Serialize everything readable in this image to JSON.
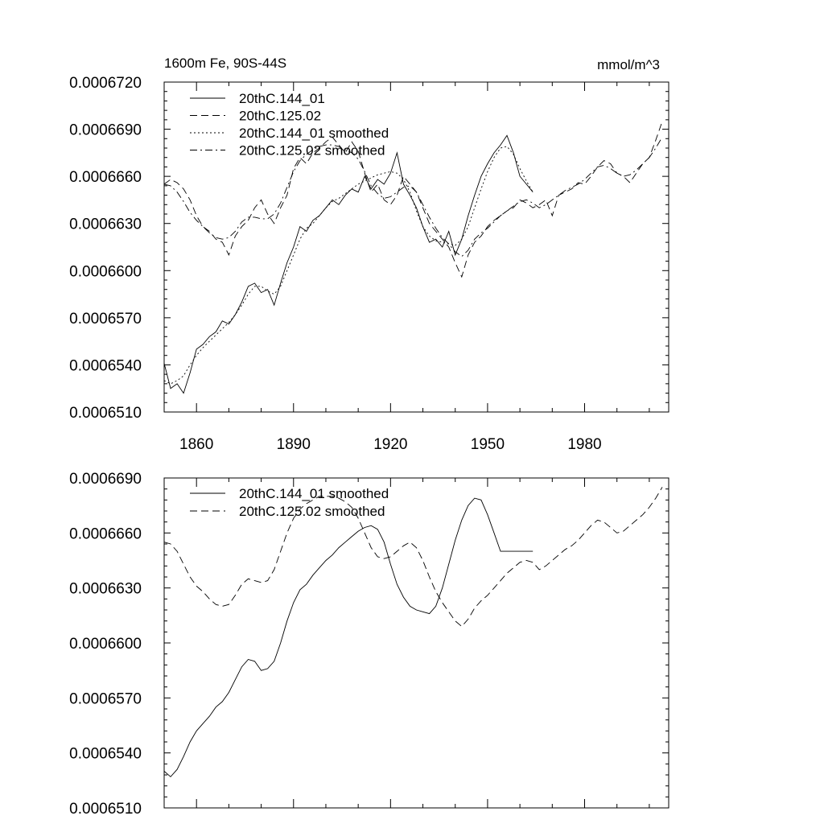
{
  "chart_data": [
    {
      "type": "line",
      "title_left": "1600m Fe, 90S-44S",
      "title_right": "mmol/m^3",
      "xlim": [
        1850,
        2006
      ],
      "ylim": [
        0.000651,
        0.000672
      ],
      "x_ticks": [
        1860,
        1890,
        1920,
        1950,
        1980
      ],
      "x_tick_labels": [
        "1860",
        "1890",
        "1920",
        "1950",
        "1980"
      ],
      "y_ticks": [
        0.000651,
        0.000654,
        0.000657,
        0.00066,
        0.000663,
        0.000666,
        0.000669,
        0.000672
      ],
      "y_tick_labels": [
        "0.0006510",
        "0.0006540",
        "0.0006570",
        "0.0006600",
        "0.0006630",
        "0.0006660",
        "0.0006690",
        "0.0006720"
      ],
      "series": [
        {
          "name": "20thC.144_01",
          "dash": "solid",
          "x": [
            1850,
            1852,
            1854,
            1856,
            1858,
            1860,
            1862,
            1864,
            1866,
            1868,
            1870,
            1872,
            1874,
            1876,
            1878,
            1880,
            1882,
            1884,
            1886,
            1888,
            1890,
            1892,
            1894,
            1896,
            1898,
            1900,
            1902,
            1904,
            1906,
            1908,
            1910,
            1912,
            1914,
            1916,
            1918,
            1920,
            1922,
            1924,
            1926,
            1928,
            1930,
            1932,
            1934,
            1936,
            1938,
            1940,
            1942,
            1944,
            1946,
            1948,
            1950,
            1952,
            1954,
            1956,
            1958,
            1960,
            1962,
            1964
          ],
          "values": [
            0.0006541,
            0.0006525,
            0.0006528,
            0.0006522,
            0.0006535,
            0.000655,
            0.0006553,
            0.0006558,
            0.0006561,
            0.0006568,
            0.0006566,
            0.0006572,
            0.000658,
            0.000659,
            0.0006592,
            0.0006586,
            0.0006588,
            0.0006578,
            0.0006592,
            0.0006605,
            0.0006615,
            0.0006628,
            0.0006625,
            0.0006632,
            0.0006635,
            0.000664,
            0.0006645,
            0.0006642,
            0.0006648,
            0.0006652,
            0.000665,
            0.000666,
            0.0006652,
            0.0006658,
            0.0006655,
            0.0006662,
            0.0006675,
            0.0006655,
            0.0006648,
            0.000664,
            0.0006628,
            0.0006618,
            0.000662,
            0.0006615,
            0.0006625,
            0.000661,
            0.000662,
            0.0006635,
            0.0006648,
            0.000666,
            0.0006668,
            0.0006675,
            0.000668,
            0.0006686,
            0.0006675,
            0.000666,
            0.0006655,
            0.000665
          ]
        },
        {
          "name": "20thC.125.02",
          "dash": "long-dash",
          "x": [
            1850,
            1852,
            1854,
            1856,
            1858,
            1860,
            1862,
            1864,
            1866,
            1868,
            1870,
            1872,
            1874,
            1876,
            1878,
            1880,
            1882,
            1884,
            1886,
            1888,
            1890,
            1892,
            1894,
            1896,
            1898,
            1900,
            1902,
            1904,
            1906,
            1908,
            1910,
            1912,
            1914,
            1916,
            1918,
            1920,
            1922,
            1924,
            1926,
            1928,
            1930,
            1932,
            1934,
            1936,
            1938,
            1940,
            1942,
            1944,
            1946,
            1948,
            1950,
            1952,
            1954,
            1956,
            1958,
            1960,
            1962,
            1964,
            1966,
            1968,
            1970,
            1972,
            1974,
            1976,
            1978,
            1980,
            1982,
            1984,
            1986,
            1988,
            1990,
            1992,
            1994,
            1996,
            1998,
            2000,
            2002,
            2004
          ],
          "values": [
            0.0006655,
            0.0006658,
            0.0006656,
            0.0006652,
            0.0006645,
            0.0006635,
            0.0006628,
            0.0006625,
            0.000662,
            0.0006618,
            0.000661,
            0.0006622,
            0.0006628,
            0.0006632,
            0.000664,
            0.0006645,
            0.0006636,
            0.000663,
            0.000664,
            0.0006648,
            0.0006665,
            0.0006672,
            0.0006668,
            0.0006675,
            0.0006678,
            0.0006682,
            0.0006685,
            0.000668,
            0.0006675,
            0.0006682,
            0.0006676,
            0.0006662,
            0.000665,
            0.0006655,
            0.0006645,
            0.0006642,
            0.0006648,
            0.000666,
            0.0006655,
            0.000665,
            0.000664,
            0.000663,
            0.0006625,
            0.000662,
            0.0006615,
            0.0006605,
            0.0006596,
            0.000661,
            0.0006618,
            0.0006622,
            0.0006628,
            0.0006632,
            0.0006635,
            0.0006638,
            0.000664,
            0.0006645,
            0.0006643,
            0.000664,
            0.0006642,
            0.0006645,
            0.0006635,
            0.0006648,
            0.000665,
            0.0006652,
            0.0006656,
            0.0006655,
            0.000666,
            0.0006666,
            0.000667,
            0.0006668,
            0.0006662,
            0.000666,
            0.0006656,
            0.0006662,
            0.0006668,
            0.0006672,
            0.0006683,
            0.0006695
          ]
        },
        {
          "name": "20thC.144_01 smoothed",
          "dash": "dotted",
          "x": [
            1850,
            1852,
            1854,
            1856,
            1858,
            1860,
            1862,
            1864,
            1866,
            1868,
            1870,
            1872,
            1874,
            1876,
            1878,
            1880,
            1882,
            1884,
            1886,
            1888,
            1890,
            1892,
            1894,
            1896,
            1898,
            1900,
            1902,
            1904,
            1906,
            1908,
            1910,
            1912,
            1914,
            1916,
            1918,
            1920,
            1922,
            1924,
            1926,
            1928,
            1930,
            1932,
            1934,
            1936,
            1938,
            1940,
            1942,
            1944,
            1946,
            1948,
            1950,
            1952,
            1954,
            1956,
            1958,
            1960,
            1962,
            1964
          ],
          "values": [
            0.000653,
            0.0006528,
            0.000653,
            0.0006533,
            0.000654,
            0.0006546,
            0.0006551,
            0.0006555,
            0.0006559,
            0.0006563,
            0.0006567,
            0.0006572,
            0.0006578,
            0.0006585,
            0.000659,
            0.000659,
            0.0006587,
            0.0006585,
            0.000659,
            0.00066,
            0.000661,
            0.000662,
            0.0006627,
            0.000663,
            0.0006635,
            0.000664,
            0.0006644,
            0.0006646,
            0.0006649,
            0.0006652,
            0.0006655,
            0.0006657,
            0.0006659,
            0.0006661,
            0.0006662,
            0.0006663,
            0.0006662,
            0.0006658,
            0.000665,
            0.0006638,
            0.0006628,
            0.0006622,
            0.0006619,
            0.0006618,
            0.0006617,
            0.0006616,
            0.000662,
            0.0006628,
            0.000664,
            0.0006652,
            0.0006663,
            0.0006672,
            0.0006678,
            0.0006679,
            0.0006674,
            0.0006665,
            0.0006657,
            0.000665
          ]
        },
        {
          "name": "20thC.125.02 smoothed",
          "dash": "dash-dot",
          "x": [
            1850,
            1852,
            1854,
            1856,
            1858,
            1860,
            1862,
            1864,
            1866,
            1868,
            1870,
            1872,
            1874,
            1876,
            1878,
            1880,
            1882,
            1884,
            1886,
            1888,
            1890,
            1892,
            1894,
            1896,
            1898,
            1900,
            1902,
            1904,
            1906,
            1908,
            1910,
            1912,
            1914,
            1916,
            1918,
            1920,
            1922,
            1924,
            1926,
            1928,
            1930,
            1932,
            1934,
            1936,
            1938,
            1940,
            1942,
            1944,
            1946,
            1948,
            1950,
            1952,
            1954,
            1956,
            1958,
            1960,
            1962,
            1964,
            1966,
            1968,
            1970,
            1972,
            1974,
            1976,
            1978,
            1980,
            1982,
            1984,
            1986,
            1988,
            1990,
            1992,
            1994,
            1996,
            1998,
            2000,
            2002,
            2004
          ],
          "values": [
            0.0006655,
            0.0006654,
            0.000665,
            0.0006644,
            0.0006637,
            0.0006632,
            0.0006628,
            0.0006624,
            0.0006621,
            0.000662,
            0.0006621,
            0.0006625,
            0.0006631,
            0.0006634,
            0.0006634,
            0.0006633,
            0.0006633,
            0.0006636,
            0.0006643,
            0.0006653,
            0.0006663,
            0.000667,
            0.0006674,
            0.0006677,
            0.0006679,
            0.000668,
            0.000668,
            0.0006679,
            0.0006677,
            0.0006675,
            0.0006671,
            0.0006663,
            0.0006654,
            0.0006649,
            0.0006646,
            0.0006647,
            0.000665,
            0.0006653,
            0.0006654,
            0.000665,
            0.0006642,
            0.0006634,
            0.0006627,
            0.0006621,
            0.0006617,
            0.0006612,
            0.0006609,
            0.0006613,
            0.000662,
            0.0006624,
            0.0006627,
            0.0006631,
            0.0006635,
            0.0006638,
            0.0006641,
            0.0006644,
            0.0006645,
            0.0006643,
            0.000664,
            0.0006642,
            0.0006645,
            0.0006648,
            0.0006651,
            0.0006653,
            0.0006655,
            0.0006658,
            0.0006662,
            0.0006666,
            0.0006667,
            0.0006665,
            0.0006662,
            0.000666,
            0.0006661,
            0.0006664,
            0.0006668,
            0.0006672,
            0.0006678,
            0.0006685
          ]
        }
      ]
    },
    {
      "type": "line",
      "xlim": [
        1850,
        2006
      ],
      "ylim": [
        0.000651,
        0.000669
      ],
      "x_ticks": [
        1860,
        1890,
        1920,
        1950,
        1980
      ],
      "x_tick_labels": [],
      "y_ticks": [
        0.000651,
        0.000654,
        0.000657,
        0.00066,
        0.000663,
        0.000666,
        0.000669
      ],
      "y_tick_labels": [
        "0.0006510",
        "0.0006540",
        "0.0006570",
        "0.0006600",
        "0.0006630",
        "0.0006660",
        "0.0006690"
      ],
      "series": [
        {
          "name": "20thC.144_01 smoothed",
          "dash": "solid",
          "x": [
            1850,
            1852,
            1854,
            1856,
            1858,
            1860,
            1862,
            1864,
            1866,
            1868,
            1870,
            1872,
            1874,
            1876,
            1878,
            1880,
            1882,
            1884,
            1886,
            1888,
            1890,
            1892,
            1894,
            1896,
            1898,
            1900,
            1902,
            1904,
            1906,
            1908,
            1910,
            1912,
            1914,
            1916,
            1918,
            1920,
            1922,
            1924,
            1926,
            1928,
            1930,
            1932,
            1934,
            1936,
            1938,
            1940,
            1942,
            1944,
            1946,
            1948,
            1950,
            1952,
            1954,
            1956,
            1958,
            1960,
            1962,
            1964
          ],
          "values": [
            0.000653,
            0.0006527,
            0.0006531,
            0.0006538,
            0.0006546,
            0.0006552,
            0.0006556,
            0.000656,
            0.0006565,
            0.0006568,
            0.0006573,
            0.000658,
            0.0006587,
            0.0006591,
            0.000659,
            0.0006585,
            0.0006586,
            0.000659,
            0.00066,
            0.0006612,
            0.0006622,
            0.0006629,
            0.0006632,
            0.0006637,
            0.0006641,
            0.0006645,
            0.0006648,
            0.0006652,
            0.0006655,
            0.0006658,
            0.0006661,
            0.0006663,
            0.0006664,
            0.0006662,
            0.0006655,
            0.0006643,
            0.0006632,
            0.0006625,
            0.000662,
            0.0006618,
            0.0006617,
            0.0006616,
            0.000662,
            0.000663,
            0.0006643,
            0.0006656,
            0.0006667,
            0.0006675,
            0.0006679,
            0.0006678,
            0.000667,
            0.000666,
            0.000665,
            0.000665,
            0.000665,
            0.000665,
            0.000665,
            0.000665
          ]
        },
        {
          "name": "20thC.125.02 smoothed",
          "dash": "long-dash",
          "x": [
            1850,
            1852,
            1854,
            1856,
            1858,
            1860,
            1862,
            1864,
            1866,
            1868,
            1870,
            1872,
            1874,
            1876,
            1878,
            1880,
            1882,
            1884,
            1886,
            1888,
            1890,
            1892,
            1894,
            1896,
            1898,
            1900,
            1902,
            1904,
            1906,
            1908,
            1910,
            1912,
            1914,
            1916,
            1918,
            1920,
            1922,
            1924,
            1926,
            1928,
            1930,
            1932,
            1934,
            1936,
            1938,
            1940,
            1942,
            1944,
            1946,
            1948,
            1950,
            1952,
            1954,
            1956,
            1958,
            1960,
            1962,
            1964,
            1966,
            1968,
            1970,
            1972,
            1974,
            1976,
            1978,
            1980,
            1982,
            1984,
            1986,
            1988,
            1990,
            1992,
            1994,
            1996,
            1998,
            2000,
            2002,
            2004
          ],
          "values": [
            0.0006655,
            0.0006654,
            0.000665,
            0.0006643,
            0.0006636,
            0.0006631,
            0.0006628,
            0.0006624,
            0.0006621,
            0.000662,
            0.0006621,
            0.0006626,
            0.0006632,
            0.0006635,
            0.0006634,
            0.0006633,
            0.0006634,
            0.000664,
            0.000665,
            0.000666,
            0.0006668,
            0.0006673,
            0.0006676,
            0.0006678,
            0.000668,
            0.000668,
            0.000668,
            0.0006679,
            0.0006677,
            0.0006674,
            0.0006668,
            0.000666,
            0.0006652,
            0.0006647,
            0.0006646,
            0.0006647,
            0.000665,
            0.0006653,
            0.0006655,
            0.0006652,
            0.0006645,
            0.0006636,
            0.0006628,
            0.0006622,
            0.0006617,
            0.0006612,
            0.0006609,
            0.0006613,
            0.0006619,
            0.0006623,
            0.0006626,
            0.000663,
            0.0006634,
            0.0006638,
            0.0006641,
            0.0006644,
            0.0006645,
            0.0006644,
            0.000664,
            0.0006642,
            0.0006645,
            0.0006648,
            0.0006651,
            0.0006653,
            0.0006656,
            0.000666,
            0.0006664,
            0.0006667,
            0.0006666,
            0.0006663,
            0.000666,
            0.0006661,
            0.0006664,
            0.0006667,
            0.000667,
            0.0006674,
            0.0006679,
            0.0006685
          ]
        }
      ]
    }
  ]
}
